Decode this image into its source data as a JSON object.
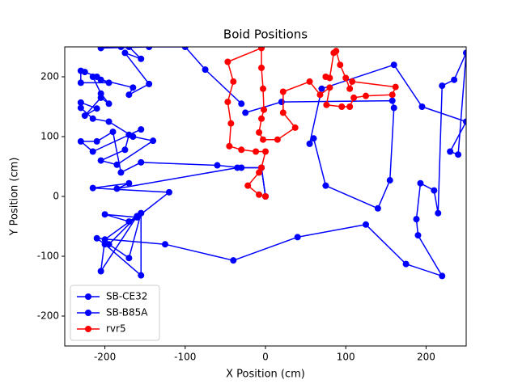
{
  "chart_data": {
    "type": "line",
    "title": "Boid Positions",
    "x_label": "X Position (cm)",
    "y_label": "Y Position (cm)",
    "xlim": [
      -250,
      250
    ],
    "ylim": [
      -250,
      250
    ],
    "xticks": [
      -200,
      -100,
      0,
      100,
      200
    ],
    "yticks": [
      -200,
      -100,
      0,
      100,
      200
    ],
    "grid": false,
    "legend": "lower left",
    "series": [
      {
        "name": "SB-CE32",
        "color": "#0000ff",
        "x": [
          0,
          -5,
          -30,
          -60,
          -155,
          -180,
          -190,
          -210,
          -230,
          -215,
          -155,
          -170,
          -175,
          -205,
          -185,
          -140,
          -165,
          -195,
          -215,
          -230,
          -230,
          -210,
          -225,
          -205,
          -195,
          -205,
          -215,
          -195,
          -230,
          -230,
          -225,
          -210,
          -205,
          -165,
          -170,
          -145,
          -175,
          -155,
          -170,
          -145,
          -205,
          -180,
          -100,
          -75,
          -30
        ],
        "values": [
          0,
          48,
          48,
          52,
          57,
          40,
          108,
          92,
          92,
          75,
          112,
          103,
          78,
          60,
          53,
          93,
          100,
          125,
          130,
          148,
          157,
          147,
          135,
          165,
          155,
          172,
          200,
          190,
          190,
          210,
          208,
          200,
          195,
          182,
          170,
          188,
          240,
          230,
          250,
          250,
          248,
          250,
          250,
          212,
          155
        ]
      },
      {
        "name": "SB-B85A",
        "color": "#0000ff",
        "x": [
          0,
          -5,
          -35,
          -185,
          -170,
          -215,
          -120,
          -160,
          -200,
          -170,
          -155,
          -200,
          -205,
          -160,
          -195,
          -170,
          -155,
          -155,
          -200,
          -210,
          -125,
          -40,
          40,
          125,
          175,
          220,
          190,
          188,
          193,
          210,
          215,
          220,
          235,
          250,
          240,
          230,
          250,
          195,
          160,
          70,
          55,
          60,
          75,
          140,
          155,
          160,
          158,
          20,
          -25
        ],
        "values": [
          0,
          48,
          48,
          13,
          22,
          14,
          7,
          -35,
          -30,
          -42,
          -28,
          -72,
          -125,
          -33,
          -80,
          -103,
          -28,
          -132,
          -80,
          -70,
          -80,
          -107,
          -68,
          -47,
          -113,
          -133,
          -65,
          -38,
          22,
          10,
          -28,
          185,
          195,
          240,
          70,
          75,
          125,
          150,
          220,
          180,
          88,
          97,
          18,
          -20,
          27,
          148,
          160,
          158,
          140
        ]
      },
      {
        "name": "rvr5",
        "color": "#ff0000",
        "x": [
          0,
          -8,
          -22,
          -8,
          -5,
          0,
          -12,
          -30,
          -45,
          -43,
          -47,
          -40,
          -47,
          -5,
          -5,
          -3,
          -2,
          -5,
          -8,
          -3,
          15,
          37,
          22,
          22,
          55,
          68,
          80,
          76,
          95,
          105,
          110,
          125,
          158,
          162,
          108,
          105,
          100,
          93,
          88,
          85,
          80,
          75
        ],
        "values": [
          0,
          3,
          18,
          40,
          48,
          75,
          75,
          78,
          84,
          122,
          158,
          192,
          225,
          248,
          215,
          180,
          145,
          130,
          107,
          95,
          95,
          115,
          140,
          175,
          192,
          170,
          182,
          153,
          150,
          150,
          165,
          168,
          170,
          183,
          192,
          180,
          198,
          220,
          243,
          240,
          198,
          200
        ]
      }
    ]
  }
}
